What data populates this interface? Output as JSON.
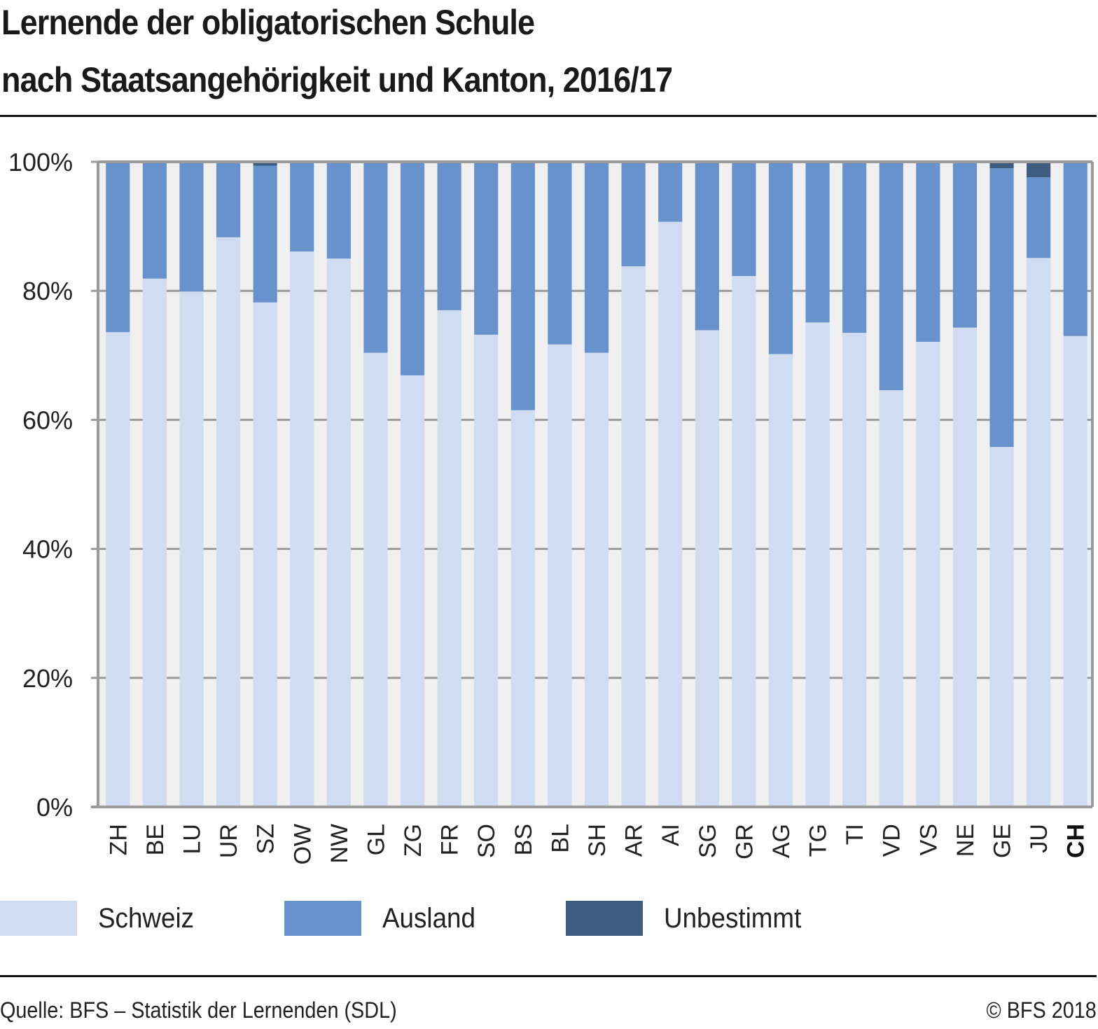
{
  "header": {
    "title_line1": "Lernende der obligatorischen Schule",
    "title_line2": "nach Staatsangehörigkeit und Kanton, 2016/17"
  },
  "legend": {
    "items": [
      {
        "label": "Schweiz",
        "color": "#cfdcf1"
      },
      {
        "label": "Ausland",
        "color": "#6892cb"
      },
      {
        "label": "Unbestimmt",
        "color": "#3e5c80"
      }
    ]
  },
  "footer": {
    "source": "Quelle: BFS – Statistik der Lernenden (SDL)",
    "copyright": "© BFS 2018"
  },
  "colors": {
    "plot_background": "#f0f0f0",
    "gridline": "#9b9b9b",
    "axis": "#9b9b9b"
  },
  "chart_data": {
    "type": "bar",
    "stacked": true,
    "normalized": true,
    "title": "Lernende der obligatorischen Schule nach Staatsangehörigkeit und Kanton, 2016/17",
    "xlabel": "",
    "ylabel": "",
    "ylim": [
      0,
      100
    ],
    "yticks": [
      0,
      20,
      40,
      60,
      80,
      100
    ],
    "ytick_labels": [
      "0%",
      "20%",
      "40%",
      "60%",
      "80%",
      "100%"
    ],
    "grid": true,
    "legend_position": "bottom",
    "categories": [
      "ZH",
      "BE",
      "LU",
      "UR",
      "SZ",
      "OW",
      "NW",
      "GL",
      "ZG",
      "FR",
      "SO",
      "BS",
      "BL",
      "SH",
      "AR",
      "AI",
      "SG",
      "GR",
      "AG",
      "TG",
      "TI",
      "VD",
      "VS",
      "NE",
      "GE",
      "JU",
      "CH"
    ],
    "bold_categories": [
      "CH"
    ],
    "series": [
      {
        "name": "Schweiz",
        "color": "#cfdcf1",
        "values": [
          73.6,
          81.9,
          79.9,
          88.3,
          78.2,
          86.1,
          85.0,
          70.4,
          66.9,
          77.0,
          73.2,
          61.5,
          71.7,
          70.4,
          83.8,
          90.7,
          73.9,
          82.3,
          70.2,
          75.1,
          73.5,
          64.6,
          72.1,
          74.3,
          55.8,
          85.1,
          73.0
        ]
      },
      {
        "name": "Ausland",
        "color": "#6892cb",
        "values": [
          26.4,
          18.1,
          20.1,
          11.6,
          21.2,
          13.9,
          14.8,
          29.6,
          33.1,
          23.0,
          26.8,
          38.5,
          28.3,
          29.6,
          16.2,
          9.3,
          26.0,
          17.7,
          29.8,
          24.9,
          26.5,
          35.4,
          27.9,
          25.5,
          43.2,
          12.5,
          26.9
        ]
      },
      {
        "name": "Unbestimmt",
        "color": "#3e5c80",
        "values": [
          0.0,
          0.0,
          0.0,
          0.1,
          0.6,
          0.0,
          0.2,
          0.0,
          0.0,
          0.0,
          0.0,
          0.0,
          0.0,
          0.0,
          0.0,
          0.0,
          0.1,
          0.0,
          0.0,
          0.0,
          0.0,
          0.0,
          0.0,
          0.2,
          1.0,
          2.4,
          0.1
        ]
      }
    ]
  }
}
